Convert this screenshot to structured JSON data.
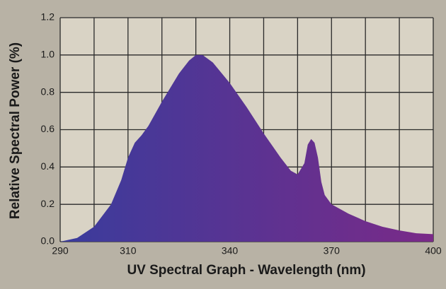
{
  "chart_data": {
    "type": "area",
    "x_label": "UV Spectral Graph - Wavelength (nm)",
    "y_label": "Relative Spectral Power (%)",
    "x": [
      290,
      295,
      300,
      305,
      308,
      310,
      312,
      314,
      316,
      320,
      325,
      328,
      330,
      332,
      335,
      340,
      345,
      350,
      355,
      358,
      360,
      362,
      363,
      364,
      365,
      366,
      367,
      368,
      370,
      375,
      380,
      385,
      390,
      395,
      400
    ],
    "values": [
      0.0,
      0.02,
      0.08,
      0.2,
      0.33,
      0.45,
      0.53,
      0.57,
      0.62,
      0.75,
      0.9,
      0.97,
      1.0,
      1.0,
      0.96,
      0.85,
      0.72,
      0.58,
      0.45,
      0.38,
      0.36,
      0.42,
      0.52,
      0.55,
      0.53,
      0.45,
      0.32,
      0.25,
      0.2,
      0.15,
      0.11,
      0.08,
      0.06,
      0.045,
      0.04
    ],
    "colors": [
      "#3a3c9c",
      "#7a2a88"
    ],
    "xlim": [
      290,
      400
    ],
    "ylim": [
      0,
      1.2
    ],
    "xticks": [
      290,
      310,
      340,
      370,
      400
    ],
    "x_minor_ticks": [
      300,
      320,
      330,
      350,
      360,
      380,
      390
    ],
    "yticks": [
      {
        "value": 0,
        "label": "0.0"
      },
      0.2,
      0.4,
      0.6,
      0.8,
      {
        "value": 1,
        "label": "1.0"
      },
      1.2
    ],
    "grid": true
  }
}
